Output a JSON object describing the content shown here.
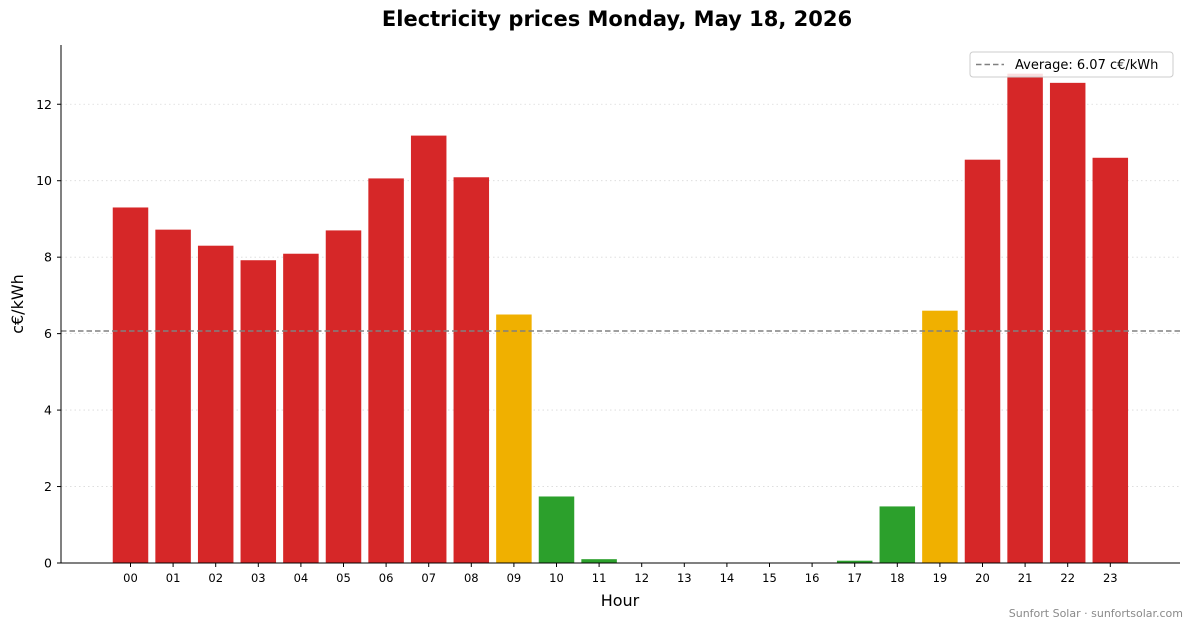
{
  "chart_data": {
    "type": "bar",
    "title": "Electricity prices Monday, May 18, 2026",
    "xlabel": "Hour",
    "ylabel": "c€/kWh",
    "categories": [
      "00",
      "01",
      "02",
      "03",
      "04",
      "05",
      "06",
      "07",
      "08",
      "09",
      "10",
      "11",
      "12",
      "13",
      "14",
      "15",
      "16",
      "17",
      "18",
      "19",
      "20",
      "21",
      "22",
      "23"
    ],
    "values": [
      9.3,
      8.72,
      8.3,
      7.92,
      8.09,
      8.7,
      10.06,
      11.18,
      10.09,
      6.5,
      1.74,
      0.1,
      0.0,
      0.0,
      0.0,
      0.0,
      0.0,
      0.06,
      1.48,
      6.6,
      10.55,
      12.8,
      12.56,
      10.6
    ],
    "bar_colors": [
      "#d62728",
      "#d62728",
      "#d62728",
      "#d62728",
      "#d62728",
      "#d62728",
      "#d62728",
      "#d62728",
      "#d62728",
      "#f0b000",
      "#2ca02c",
      "#2ca02c",
      "#2ca02c",
      "#2ca02c",
      "#2ca02c",
      "#2ca02c",
      "#2ca02c",
      "#2ca02c",
      "#2ca02c",
      "#f0b000",
      "#d62728",
      "#d62728",
      "#d62728",
      "#d62728"
    ],
    "ylim": [
      0,
      13.55
    ],
    "yticks": [
      0,
      2,
      4,
      6,
      8,
      10,
      12
    ],
    "average": 6.07,
    "legend": {
      "label": "Average: 6.07 c€/kWh",
      "position": "top-right"
    },
    "grid": "y-dotted"
  },
  "footer": "Sunfort Solar · sunfortsolar.com"
}
